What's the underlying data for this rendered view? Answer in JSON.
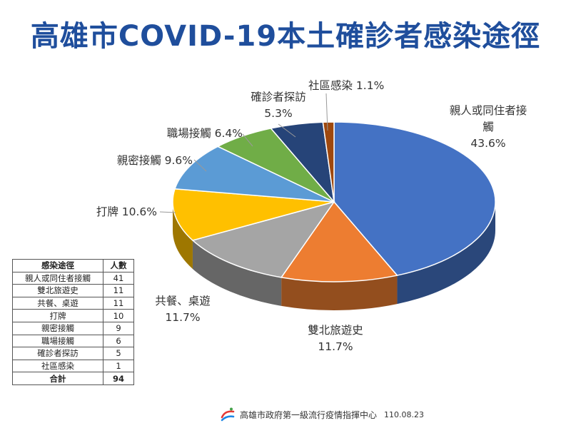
{
  "title": "高雄市COVID-19本土確診者感染途徑",
  "chart_data": {
    "type": "pie",
    "title": "高雄市COVID-19本土確診者感染途徑",
    "slices": [
      {
        "label": "親人或同住者接觸",
        "value": 43.6,
        "pct_label": "43.6%",
        "color": "#4472c4"
      },
      {
        "label": "雙北旅遊史",
        "value": 11.7,
        "pct_label": "11.7%",
        "color": "#ed7d31"
      },
      {
        "label": "共餐、桌遊",
        "value": 11.7,
        "pct_label": "11.7%",
        "color": "#a5a5a5"
      },
      {
        "label": "打牌",
        "value": 10.6,
        "pct_label": "10.6%",
        "color": "#ffc000"
      },
      {
        "label": "親密接觸",
        "value": 9.6,
        "pct_label": "9.6%",
        "color": "#5b9bd5"
      },
      {
        "label": "職場接觸",
        "value": 6.4,
        "pct_label": "6.4%",
        "color": "#70ad47"
      },
      {
        "label": "確診者探訪",
        "value": 5.3,
        "pct_label": "5.3%",
        "color": "#264478"
      },
      {
        "label": "社區感染",
        "value": 1.1,
        "pct_label": "1.1%",
        "color": "#9e480e"
      }
    ]
  },
  "chart_labels": [
    {
      "lines": [
        "親人或同住者接",
        "觸",
        "43.6%"
      ],
      "anchor": "middle"
    },
    {
      "lines": [
        "雙北旅遊史",
        "11.7%"
      ],
      "anchor": "middle"
    },
    {
      "lines": [
        "共餐、桌遊",
        "11.7%"
      ],
      "anchor": "middle"
    },
    {
      "lines": [
        "打牌 10.6%"
      ],
      "anchor": "end"
    },
    {
      "lines": [
        "親密接觸 9.6%"
      ],
      "anchor": "end"
    },
    {
      "lines": [
        "職場接觸 6.4%"
      ],
      "anchor": "end"
    },
    {
      "lines": [
        "確診者探訪",
        "5.3%"
      ],
      "anchor": "middle"
    },
    {
      "lines": [
        "社區感染 1.1%"
      ],
      "anchor": "start"
    }
  ],
  "table": {
    "headers": [
      "感染途徑",
      "人數"
    ],
    "rows": [
      [
        "親人或同住者接觸",
        "41"
      ],
      [
        "雙北旅遊史",
        "11"
      ],
      [
        "共餐、桌遊",
        "11"
      ],
      [
        "打牌",
        "10"
      ],
      [
        "親密接觸",
        "9"
      ],
      [
        "職場接觸",
        "6"
      ],
      [
        "確診者探訪",
        "5"
      ],
      [
        "社區感染",
        "1"
      ]
    ],
    "total": [
      "合計",
      "94"
    ]
  },
  "footer": {
    "org": "高雄市政府第一級流行疫情指揮中心",
    "date": "110.08.23",
    "logo_icon": "kaohsiung-logo-icon"
  }
}
